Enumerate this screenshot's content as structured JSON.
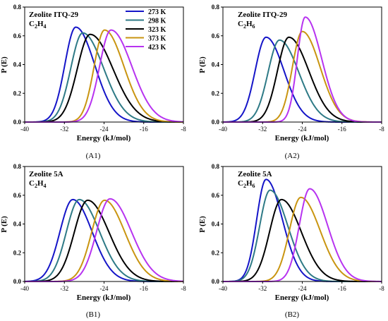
{
  "colors": {
    "273 K": "#1515c8",
    "298 K": "#2e7a86",
    "323 K": "#000000",
    "373 K": "#c99511",
    "423 K": "#b733f0"
  },
  "legend": [
    "273 K",
    "298 K",
    "323 K",
    "373 K",
    "423 K"
  ],
  "chart_data": [
    {
      "type": "line",
      "panel": "(A1)",
      "title": "Zeolite ITQ-29",
      "title2_base": "C",
      "title2_sub": "2",
      "title2_post": "H",
      "title2_sub2": "4",
      "xlabel": "Energy (kJ/mol)",
      "ylabel": "P (E)",
      "xlim": [
        -40,
        -8
      ],
      "ylim": [
        0,
        0.8
      ],
      "xticks": [
        "-40",
        "-32",
        "-24",
        "-16",
        "-8"
      ],
      "yticks": [
        "0.0",
        "0.2",
        "0.4",
        "0.6",
        "0.8"
      ],
      "legend_position": "top-right",
      "series": [
        {
          "name": "273 K",
          "peak_x": -29.7,
          "peak_y": 0.66,
          "width_left": 2.2,
          "width_right": 3.8
        },
        {
          "name": "298 K",
          "peak_x": -28.3,
          "peak_y": 0.62,
          "width_left": 2.4,
          "width_right": 4.2
        },
        {
          "name": "323 K",
          "peak_x": -26.8,
          "peak_y": 0.61,
          "width_left": 2.6,
          "width_right": 4.6
        },
        {
          "name": "373 K",
          "peak_x": -23.9,
          "peak_y": 0.64,
          "width_left": 2.1,
          "width_right": 3.9
        },
        {
          "name": "423 K",
          "peak_x": -22.6,
          "peak_y": 0.64,
          "width_left": 2.3,
          "width_right": 4.2
        }
      ]
    },
    {
      "type": "line",
      "panel": "(A2)",
      "title": "Zeolite ITQ-29",
      "title2_base": "C",
      "title2_sub": "2",
      "title2_post": "H",
      "title2_sub2": "6",
      "xlabel": "Energy (kJ/mol)",
      "ylabel": "P (E)",
      "xlim": [
        -40,
        -8
      ],
      "ylim": [
        0,
        0.8
      ],
      "xticks": [
        "-40",
        "-32",
        "-24",
        "-16",
        "-8"
      ],
      "yticks": [
        "0.0",
        "0.2",
        "0.4",
        "0.6",
        "0.8"
      ],
      "series": [
        {
          "name": "273 K",
          "peak_x": -31.3,
          "peak_y": 0.59,
          "width_left": 2.2,
          "width_right": 3.6
        },
        {
          "name": "298 K",
          "peak_x": -28.6,
          "peak_y": 0.57,
          "width_left": 2.3,
          "width_right": 3.9
        },
        {
          "name": "323 K",
          "peak_x": -26.7,
          "peak_y": 0.59,
          "width_left": 2.3,
          "width_right": 4.0
        },
        {
          "name": "373 K",
          "peak_x": -24.0,
          "peak_y": 0.63,
          "width_left": 2.0,
          "width_right": 3.6
        },
        {
          "name": "423 K",
          "peak_x": -23.4,
          "peak_y": 0.73,
          "width_left": 1.6,
          "width_right": 3.3
        }
      ]
    },
    {
      "type": "line",
      "panel": "(B1)",
      "title": "Zeolite 5A",
      "title2_base": "C",
      "title2_sub": "2",
      "title2_post": "H",
      "title2_sub2": "4",
      "xlabel": "Energy (kJ/mol)",
      "ylabel": "P (E)",
      "xlim": [
        -40,
        -8
      ],
      "ylim": [
        0,
        0.8
      ],
      "xticks": [
        "-40",
        "-32",
        "-24",
        "-16",
        "-8"
      ],
      "yticks": [
        "0.0",
        "0.2",
        "0.4",
        "0.6",
        "0.8"
      ],
      "series": [
        {
          "name": "273 K",
          "peak_x": -30.3,
          "peak_y": 0.57,
          "width_left": 2.6,
          "width_right": 3.9
        },
        {
          "name": "298 K",
          "peak_x": -29.0,
          "peak_y": 0.57,
          "width_left": 2.6,
          "width_right": 4.1
        },
        {
          "name": "323 K",
          "peak_x": -27.3,
          "peak_y": 0.565,
          "width_left": 2.7,
          "width_right": 4.3
        },
        {
          "name": "373 K",
          "peak_x": -23.9,
          "peak_y": 0.565,
          "width_left": 2.6,
          "width_right": 4.1
        },
        {
          "name": "423 K",
          "peak_x": -22.8,
          "peak_y": 0.575,
          "width_left": 2.7,
          "width_right": 4.3
        }
      ]
    },
    {
      "type": "line",
      "panel": "(B2)",
      "title": "Zeolite 5A",
      "title2_base": "C",
      "title2_sub": "2",
      "title2_post": "H",
      "title2_sub2": "6",
      "xlabel": "Energy (kJ/mol)",
      "ylabel": "P (E)",
      "xlim": [
        -40,
        -8
      ],
      "ylim": [
        0,
        0.8
      ],
      "xticks": [
        "-40",
        "-32",
        "-24",
        "-16",
        "-8"
      ],
      "yticks": [
        "0.0",
        "0.2",
        "0.4",
        "0.6",
        "0.8"
      ],
      "series": [
        {
          "name": "273 K",
          "peak_x": -31.3,
          "peak_y": 0.71,
          "width_left": 1.9,
          "width_right": 3.3
        },
        {
          "name": "298 K",
          "peak_x": -30.5,
          "peak_y": 0.635,
          "width_left": 2.1,
          "width_right": 3.6
        },
        {
          "name": "323 K",
          "peak_x": -28.2,
          "peak_y": 0.57,
          "width_left": 2.4,
          "width_right": 4.0
        },
        {
          "name": "373 K",
          "peak_x": -24.3,
          "peak_y": 0.585,
          "width_left": 2.3,
          "width_right": 3.9
        },
        {
          "name": "423 K",
          "peak_x": -22.5,
          "peak_y": 0.645,
          "width_left": 2.1,
          "width_right": 3.6
        }
      ]
    }
  ]
}
